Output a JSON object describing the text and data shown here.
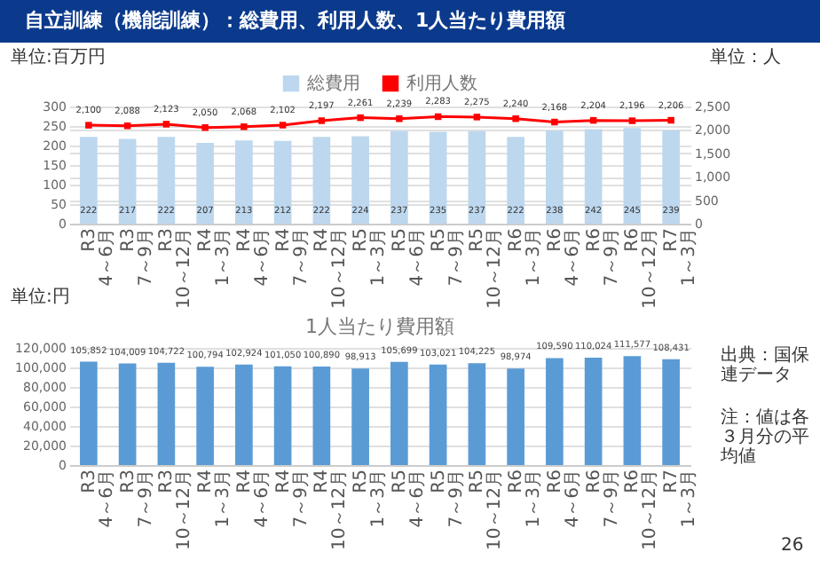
{
  "chart_data": [
    {
      "type": "bar",
      "title": "自立訓練（機能訓練）：総費用、利用人数、1人当たり費用額",
      "categories": [
        "R3 4～6月",
        "R3 7～9月",
        "R3 10～12月",
        "R4 1～3月",
        "R4 4～6月",
        "R4 7～9月",
        "R4 10～12月",
        "R5 1～3月",
        "R5 4～6月",
        "R5 7～9月",
        "R5 10～12月",
        "R6 1～3月",
        "R6 4～6月",
        "R6 7～9月",
        "R6 10～12月",
        "R7 1～3月"
      ],
      "series": [
        {
          "name": "総費用",
          "type": "bar",
          "color": "#bdd7ee",
          "values": [
            222,
            217,
            222,
            207,
            213,
            212,
            222,
            224,
            237,
            235,
            237,
            222,
            238,
            242,
            245,
            239
          ],
          "value_labels": [
            "222",
            "217",
            "222",
            "207",
            "213",
            "212",
            "222",
            "224",
            "237",
            "235",
            "237",
            "222",
            "238",
            "242",
            "245",
            "239"
          ]
        },
        {
          "name": "利用人数",
          "type": "line",
          "axis": "y2",
          "color": "#ff0000",
          "values": [
            2100,
            2088,
            2123,
            2050,
            2068,
            2102,
            2197,
            2261,
            2239,
            2283,
            2275,
            2240,
            2168,
            2204,
            2196,
            2206
          ],
          "value_labels": [
            "2,100",
            "2,088",
            "2,123",
            "2,050",
            "2,068",
            "2,102",
            "2,197",
            "2,261",
            "2,239",
            "2,283",
            "2,275",
            "2,240",
            "2,168",
            "2,204",
            "2,196",
            "2,206"
          ]
        }
      ],
      "ylim": [
        0,
        300
      ],
      "yticks": [
        0,
        50,
        100,
        150,
        200,
        250,
        300
      ],
      "y2lim": [
        0,
        2500
      ],
      "y2ticks": [
        {
          "value": 0,
          "label": "0"
        },
        {
          "value": 500,
          "label": "500"
        },
        {
          "value": 1000,
          "label": "1,000"
        },
        {
          "value": 1500,
          "label": "1,500"
        },
        {
          "value": 2000,
          "label": "2,000"
        },
        {
          "value": 2500,
          "label": "2,500"
        }
      ],
      "grid": "y",
      "legend": "top",
      "marker": "square",
      "annotations": [
        "単位:百万円",
        "単位：人"
      ]
    },
    {
      "type": "bar",
      "title": "1人当たり費用額",
      "categories": [
        "R3 4～6月",
        "R3 7～9月",
        "R3 10～12月",
        "R4 1～3月",
        "R4 4～6月",
        "R4 7～9月",
        "R4 10～12月",
        "R5 1～3月",
        "R5 4～6月",
        "R5 7～9月",
        "R5 10～12月",
        "R6 1～3月",
        "R6 4～6月",
        "R6 7～9月",
        "R6 10～12月",
        "R7 1～3月"
      ],
      "series": [
        {
          "color": "#5b9bd5",
          "values": [
            105852,
            104009,
            104722,
            100794,
            102924,
            101050,
            100890,
            98913,
            105699,
            103021,
            104225,
            98974,
            109590,
            110024,
            111577,
            108431
          ],
          "value_labels": [
            "105,852",
            "104,009",
            "104,722",
            "100,794",
            "102,924",
            "101,050",
            "100,890",
            "98,913",
            "105,699",
            "103,021",
            "104,225",
            "98,974",
            "109,590",
            "110,024",
            "111,577",
            "108,431"
          ]
        }
      ],
      "ylim": [
        0,
        120000
      ],
      "yticks": [
        {
          "value": 0,
          "label": "0"
        },
        {
          "value": 20000,
          "label": "20,000"
        },
        {
          "value": 40000,
          "label": "40,000"
        },
        {
          "value": 60000,
          "label": "60,000"
        },
        {
          "value": 80000,
          "label": "80,000"
        },
        {
          "value": 100000,
          "label": "100,000"
        },
        {
          "value": 120000,
          "label": "120,000"
        }
      ],
      "grid": "y",
      "annotations": [
        "単位:円",
        "出典：国保連データ",
        "注：値は各３月分の平均値",
        "26"
      ]
    }
  ]
}
